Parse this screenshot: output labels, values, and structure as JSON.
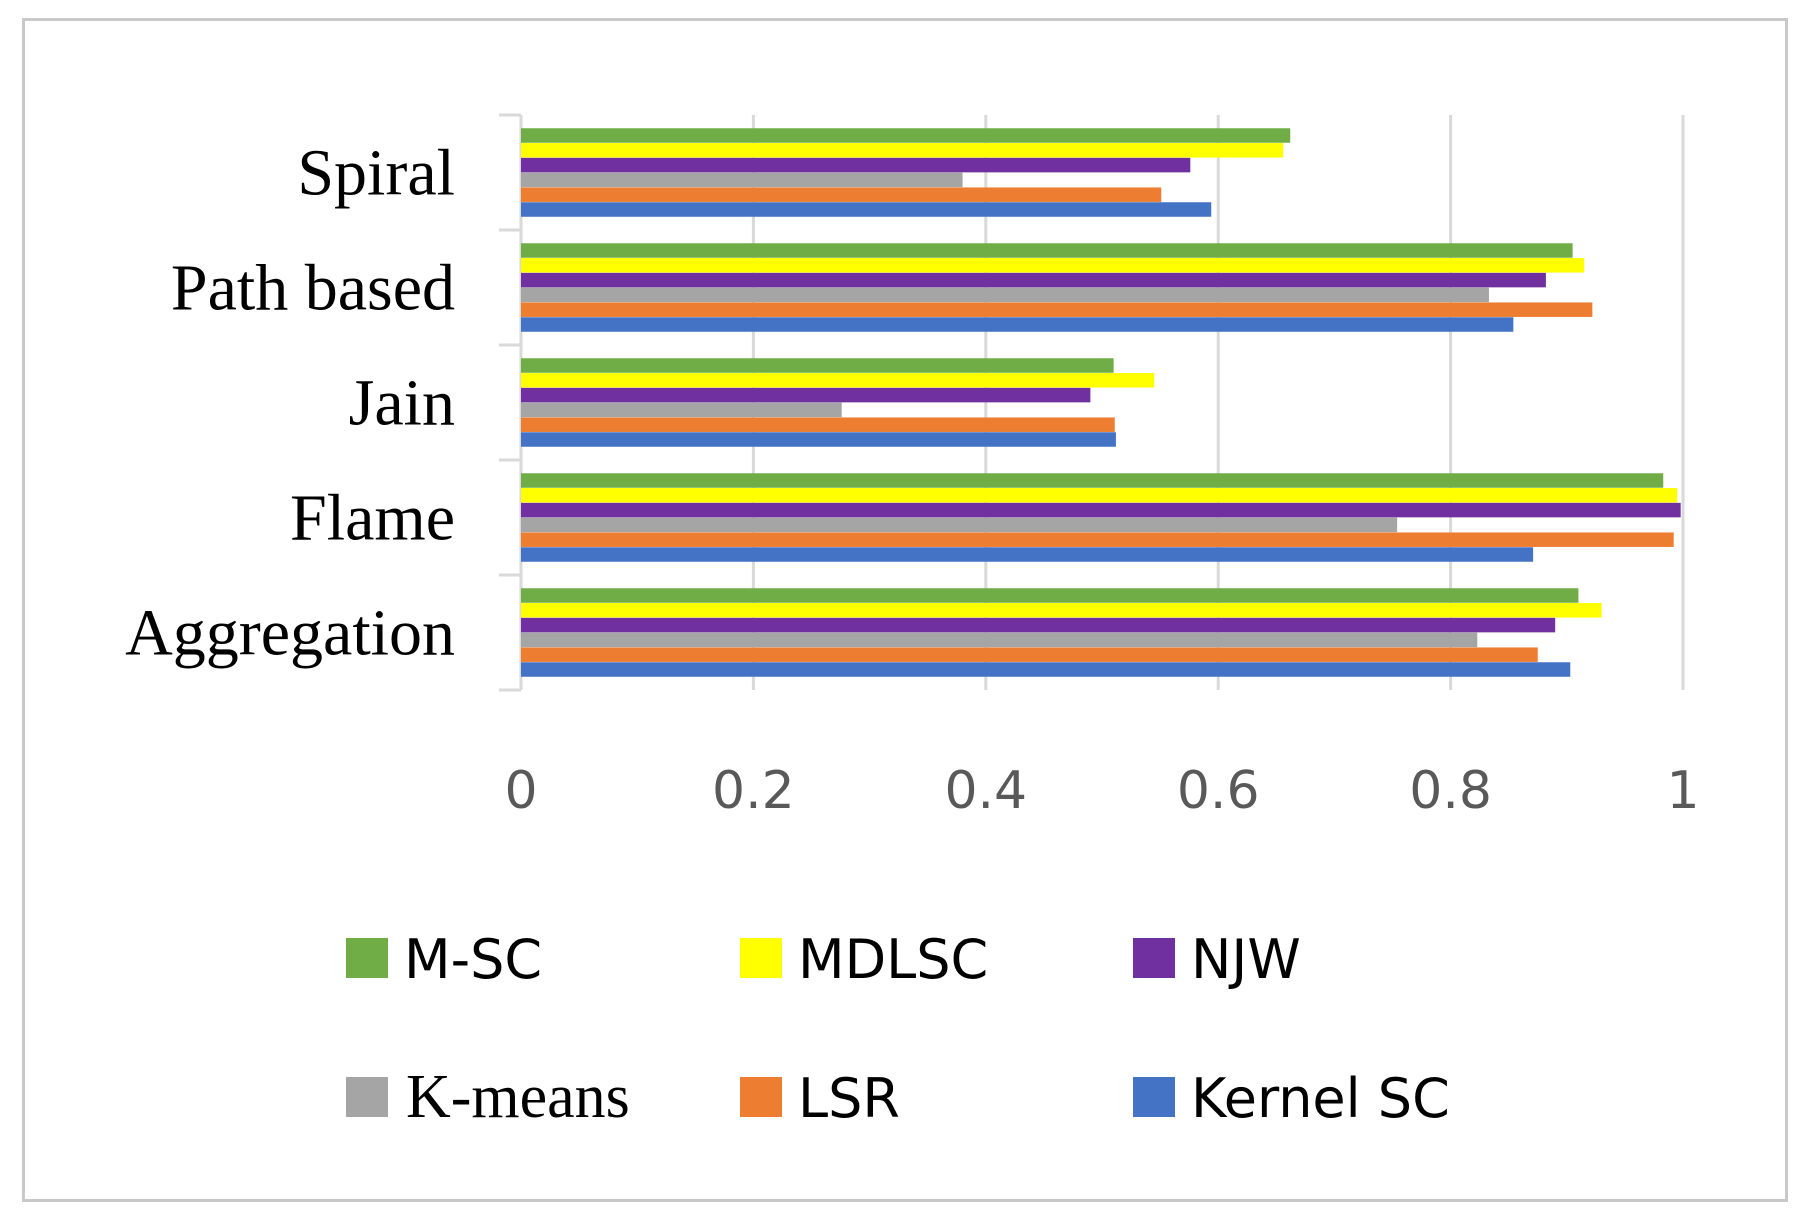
{
  "chart_data": {
    "type": "bar",
    "orientation": "horizontal",
    "categories": [
      "Aggregation",
      "Flame ",
      "Jain",
      "Path based",
      "Spiral"
    ],
    "series": [
      {
        "name": "M-SC",
        "color": "#70ad47",
        "values": [
          0.91,
          0.983,
          0.51,
          0.905,
          0.662
        ]
      },
      {
        "name": "MDLSC",
        "color": "#ffff00",
        "values": [
          0.93,
          0.995,
          0.545,
          0.915,
          0.656
        ]
      },
      {
        "name": "NJW",
        "color": "#7030a0",
        "values": [
          0.89,
          0.998,
          0.49,
          0.882,
          0.576
        ]
      },
      {
        "name": "K-means",
        "color": "#a5a5a5",
        "values": [
          0.823,
          0.754,
          0.276,
          0.833,
          0.38
        ]
      },
      {
        "name": "LSR",
        "color": "#ed7d31",
        "values": [
          0.875,
          0.992,
          0.511,
          0.922,
          0.551
        ]
      },
      {
        "name": "Kernel SC",
        "color": "#4472c4",
        "values": [
          0.903,
          0.871,
          0.512,
          0.854,
          0.594
        ]
      }
    ],
    "x_ticks": [
      "0",
      "0.2",
      "0.4",
      "0.6",
      "0.8",
      "1"
    ],
    "xlim": [
      0,
      1
    ],
    "grid": true,
    "legend_position": "bottom",
    "title": "",
    "xlabel": "",
    "ylabel": ""
  }
}
